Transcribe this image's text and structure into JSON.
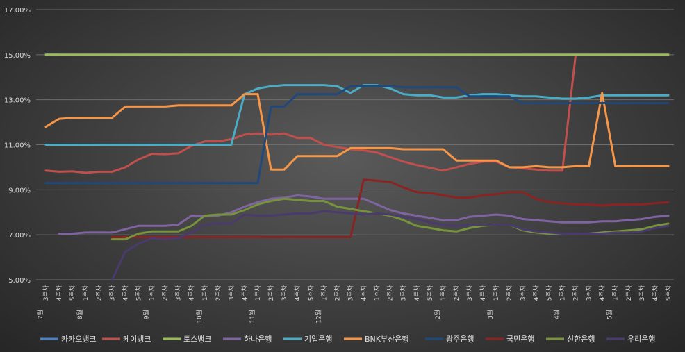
{
  "chart_data": {
    "type": "line",
    "title": "",
    "xlabel": "",
    "ylabel": "",
    "ylim": [
      5,
      17
    ],
    "yticks": [
      "5.00%",
      "7.00%",
      "9.00%",
      "11.00%",
      "13.00%",
      "15.00%",
      "17.00%"
    ],
    "grid": true,
    "legend": "bottom",
    "x": [
      "3주차",
      "4주차",
      "5주차",
      "1주차",
      "2주차",
      "3주차",
      "4주차",
      "5주차",
      "1주차",
      "2주차",
      "3주차",
      "4주차",
      "1주차",
      "2주차",
      "3주차",
      "4주차",
      "1주차",
      "2주차",
      "3주차",
      "4주차",
      "5주차",
      "1주차",
      "2주차",
      "3주차",
      "4주차",
      "1주차",
      "2주차",
      "3주차",
      "4주차",
      "5주차",
      "1주차",
      "2주차",
      "3주차",
      "4주차",
      "1주차",
      "2주차",
      "3주차",
      "4주차",
      "5주차",
      "1주차",
      "2주차",
      "3주차",
      "4주차",
      "1주차",
      "2주차",
      "3주차",
      "4주차",
      "5주차"
    ],
    "month_labels": [
      {
        "index": 0,
        "label": "7월"
      },
      {
        "index": 3,
        "label": "8월"
      },
      {
        "index": 8,
        "label": "9월"
      },
      {
        "index": 12,
        "label": "10월"
      },
      {
        "index": 16,
        "label": "11월"
      },
      {
        "index": 21,
        "label": "12월"
      },
      {
        "index": 30,
        "label": "2월"
      },
      {
        "index": 34,
        "label": "3월"
      },
      {
        "index": 39,
        "label": "4월"
      },
      {
        "index": 43,
        "label": "5월"
      }
    ],
    "series": [
      {
        "name": "카카오뱅크",
        "color": "#4a7fc1",
        "values": [
          15,
          15,
          null,
          null,
          null,
          null,
          null,
          null,
          null,
          null,
          null,
          null,
          null,
          null,
          null,
          null,
          null,
          null,
          null,
          null,
          null,
          null,
          null,
          null,
          null,
          null,
          null,
          null,
          null,
          null,
          null,
          null,
          null,
          null,
          null,
          null,
          null,
          null,
          null,
          null,
          null,
          null,
          null,
          null,
          null,
          null,
          null,
          null
        ]
      },
      {
        "name": "케이뱅크",
        "color": "#c0504d",
        "values": [
          9.85,
          9.8,
          9.82,
          9.75,
          9.8,
          9.8,
          10,
          10.35,
          10.6,
          10.58,
          10.62,
          10.95,
          11.15,
          11.15,
          11.25,
          11.45,
          11.5,
          11.45,
          11.5,
          11.3,
          11.3,
          11,
          10.9,
          10.8,
          10.75,
          10.65,
          10.45,
          10.25,
          10.1,
          9.98,
          9.85,
          10,
          10.15,
          10.25,
          10.25,
          10,
          9.95,
          9.9,
          9.85,
          9.85,
          15,
          null,
          null,
          null,
          null,
          null,
          null,
          null
        ]
      },
      {
        "name": "토스뱅크",
        "color": "#9bbb59",
        "values": [
          15,
          15,
          15,
          15,
          15,
          15,
          15,
          15,
          15,
          15,
          15,
          15,
          15,
          15,
          15,
          15,
          15,
          15,
          15,
          15,
          15,
          15,
          15,
          15,
          15,
          15,
          15,
          15,
          15,
          15,
          15,
          15,
          15,
          15,
          15,
          15,
          15,
          15,
          15,
          15,
          15,
          15,
          15,
          15,
          15,
          15,
          15,
          15
        ]
      },
      {
        "name": "하나은행",
        "color": "#8064a2",
        "values": [
          null,
          7.05,
          7.05,
          7.1,
          7.1,
          7.1,
          7.25,
          7.4,
          7.4,
          7.4,
          7.45,
          7.85,
          7.85,
          7.85,
          8,
          8.25,
          8.45,
          8.6,
          8.65,
          8.75,
          8.7,
          8.6,
          8.6,
          8.6,
          8.6,
          8.35,
          8.1,
          7.95,
          7.85,
          7.75,
          7.65,
          7.65,
          7.8,
          7.85,
          7.9,
          7.85,
          7.7,
          7.65,
          7.6,
          7.55,
          7.55,
          7.55,
          7.6,
          7.6,
          7.65,
          7.7,
          7.8,
          7.85
        ]
      },
      {
        "name": "기업은행",
        "color": "#4bacc6",
        "values": [
          11,
          11,
          11,
          11,
          11,
          11,
          11,
          11,
          11,
          11,
          11,
          11,
          11,
          11,
          11,
          13.25,
          13.5,
          13.6,
          13.65,
          13.65,
          13.65,
          13.65,
          13.6,
          13.3,
          13.65,
          13.65,
          13.5,
          13.25,
          13.2,
          13.2,
          13.1,
          13.1,
          13.2,
          13.25,
          13.25,
          13.2,
          13.15,
          13.15,
          13.1,
          13.05,
          13.05,
          13.1,
          13.2,
          13.2,
          13.2,
          13.2,
          13.2,
          13.2
        ]
      },
      {
        "name": "BNK부산은행",
        "color": "#f79646",
        "values": [
          11.8,
          12.15,
          12.2,
          12.2,
          12.2,
          12.2,
          12.7,
          12.7,
          12.7,
          12.7,
          12.75,
          12.75,
          12.75,
          12.75,
          12.75,
          13.25,
          13.25,
          9.9,
          9.9,
          10.5,
          10.5,
          10.5,
          10.5,
          10.85,
          10.85,
          10.85,
          10.85,
          10.8,
          10.8,
          10.8,
          10.8,
          10.3,
          10.3,
          10.3,
          10.3,
          10,
          10,
          10.05,
          10,
          10,
          10.05,
          10.05,
          13.3,
          10.05,
          10.05,
          10.05,
          10.05,
          10.05
        ]
      },
      {
        "name": "광주은행",
        "color": "#1f497d",
        "values": [
          9.3,
          9.3,
          9.3,
          9.3,
          9.3,
          9.3,
          9.3,
          9.3,
          9.3,
          9.3,
          9.3,
          9.3,
          9.3,
          9.3,
          9.3,
          9.3,
          9.3,
          12.7,
          12.7,
          13.25,
          13.25,
          13.25,
          13.25,
          13.6,
          13.6,
          13.6,
          13.6,
          13.55,
          13.55,
          13.55,
          13.55,
          13.55,
          13.15,
          13.15,
          13.15,
          13.15,
          12.85,
          12.85,
          12.85,
          12.85,
          12.85,
          12.85,
          12.85,
          12.85,
          12.85,
          12.85,
          12.85,
          12.85
        ]
      },
      {
        "name": "국민은행",
        "color": "#8b2323",
        "values": [
          null,
          null,
          null,
          null,
          null,
          6.9,
          6.9,
          6.9,
          6.9,
          6.9,
          6.9,
          6.9,
          6.9,
          6.9,
          6.9,
          6.9,
          6.9,
          6.9,
          6.9,
          6.9,
          6.9,
          6.9,
          6.9,
          6.9,
          9.45,
          9.4,
          9.35,
          9.1,
          8.9,
          8.85,
          8.75,
          8.65,
          8.65,
          8.75,
          8.8,
          8.9,
          8.9,
          8.6,
          8.45,
          8.4,
          8.35,
          8.35,
          8.3,
          8.35,
          8.35,
          8.35,
          8.4,
          8.45
        ]
      },
      {
        "name": "신한은행",
        "color": "#77933c",
        "values": [
          null,
          null,
          null,
          null,
          null,
          6.8,
          6.8,
          7.05,
          7.15,
          7.15,
          7.15,
          7.4,
          7.85,
          7.9,
          7.9,
          8.1,
          8.35,
          8.5,
          8.6,
          8.55,
          8.5,
          8.5,
          8.25,
          8.15,
          8.05,
          7.95,
          7.85,
          7.65,
          7.4,
          7.3,
          7.2,
          7.15,
          7.3,
          7.4,
          7.45,
          7.45,
          7.2,
          7.1,
          7.05,
          7.05,
          7.05,
          7.05,
          7.1,
          7.15,
          7.2,
          7.25,
          7.4,
          7.5
        ]
      },
      {
        "name": "우리은행",
        "color": "#4a3a6e",
        "values": [
          null,
          null,
          null,
          null,
          null,
          5,
          6.25,
          6.6,
          6.85,
          6.8,
          6.85,
          7.1,
          7.45,
          7.5,
          7.5,
          7.9,
          7.85,
          7.85,
          7.9,
          7.95,
          7.95,
          8.05,
          8,
          7.95,
          7.9,
          7.95,
          7.9,
          7.8,
          7.7,
          7.55,
          7.45,
          7.4,
          7.45,
          7.45,
          7.45,
          7.45,
          7.25,
          7.15,
          7.1,
          7.05,
          7.05,
          7.05,
          7.05,
          7.1,
          7.1,
          7.15,
          7.3,
          7.4
        ]
      }
    ]
  }
}
